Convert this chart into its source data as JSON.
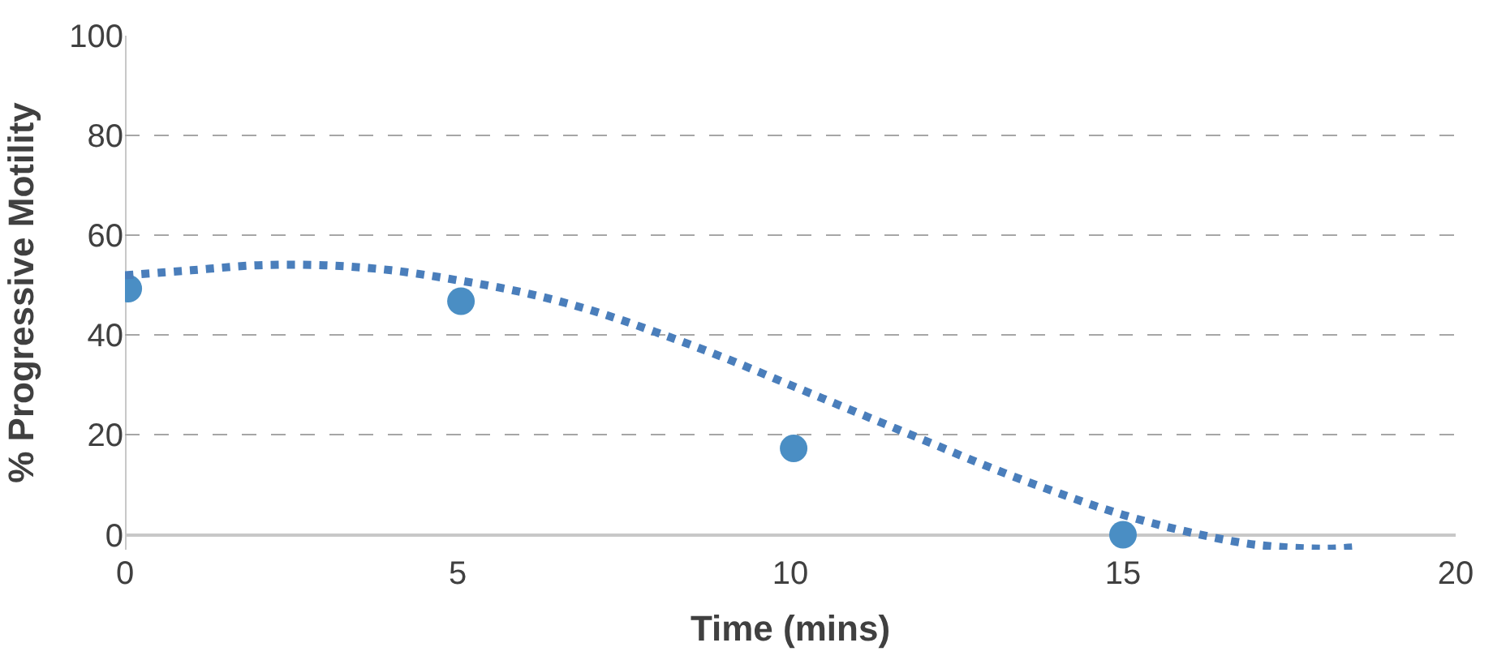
{
  "chart_data": {
    "type": "scatter",
    "xlabel": "Time (mins)",
    "ylabel": "% Progressive Motility",
    "xlim": [
      0,
      20
    ],
    "xticks": [
      0,
      5,
      10,
      15,
      20
    ],
    "ylim": [
      -3,
      100
    ],
    "yticks": [
      0,
      20,
      40,
      60,
      80,
      100
    ],
    "grid": "y",
    "legend": false,
    "series": [
      {
        "color": "#4a8ec4",
        "marker": "circle",
        "x": [
          0.05,
          5.05,
          10.05,
          15.0
        ],
        "values": [
          49.3,
          46.8,
          17.3,
          0
        ]
      },
      {
        "type": "line",
        "color": "#4a7ebb",
        "line_style": "dotted",
        "marker": "none",
        "x": [
          0,
          1,
          2,
          3,
          4,
          5,
          6,
          7,
          8,
          9,
          10,
          11,
          12,
          13,
          14,
          15,
          16,
          17,
          18,
          18.5
        ],
        "values": [
          52,
          53,
          54,
          54,
          53,
          51,
          48.5,
          45,
          40.5,
          35.5,
          30,
          24.5,
          19,
          13.5,
          8.5,
          4,
          0.5,
          -2,
          -2.8,
          -2.5
        ]
      }
    ]
  }
}
